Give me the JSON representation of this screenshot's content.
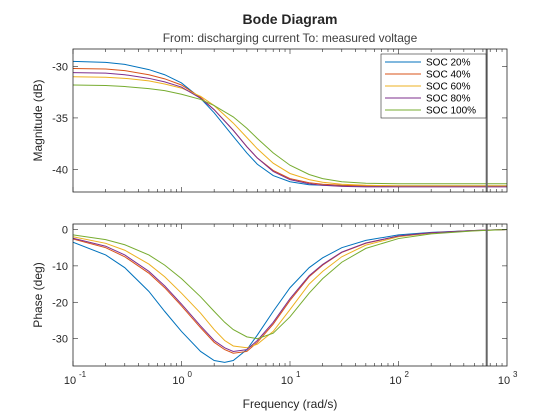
{
  "chart_data": {
    "type": "line",
    "title": "Bode Diagram",
    "subtitle": "From: discharging current  To: measured voltage",
    "xlabel": "Frequency (rad/s)",
    "xscale": "log",
    "xlim": [
      0.1,
      1000
    ],
    "xticks": [
      {
        "value": 0.1,
        "label": "10",
        "exp": "-1"
      },
      {
        "value": 1,
        "label": "10",
        "exp": "0"
      },
      {
        "value": 10,
        "label": "10",
        "exp": "1"
      },
      {
        "value": 100,
        "label": "10",
        "exp": "2"
      },
      {
        "value": 1000,
        "label": "10",
        "exp": "3"
      }
    ],
    "grid": false,
    "legend": {
      "placement": "top-right",
      "entries": [
        "SOC 20%",
        "SOC 40%",
        "SOC 60%",
        "SOC 80%",
        "SOC 100%"
      ]
    },
    "colors": [
      "#0072BD",
      "#D95319",
      "#EDB120",
      "#7E2F8E",
      "#77AC30"
    ],
    "marker_line": {
      "x": 650,
      "color": "#666666"
    },
    "panels": [
      {
        "ylabel": "Magnitude (dB)",
        "ylim": [
          -42.2,
          -28.3
        ],
        "yticks": [
          -30,
          -35,
          -40
        ],
        "series": [
          {
            "name": "SOC 20%",
            "x": [
              0.1,
              0.2,
              0.3,
              0.5,
              0.7,
              1,
              1.5,
              2,
              3,
              4,
              5,
              7,
              10,
              15,
              20,
              30,
              50,
              100,
              300,
              1000
            ],
            "y": [
              -29.5,
              -29.6,
              -29.8,
              -30.3,
              -30.8,
              -31.6,
              -33.1,
              -34.5,
              -36.8,
              -38.4,
              -39.5,
              -40.6,
              -41.2,
              -41.5,
              -41.55,
              -41.6,
              -41.6,
              -41.6,
              -41.6,
              -41.6
            ]
          },
          {
            "name": "SOC 40%",
            "x": [
              0.1,
              0.2,
              0.3,
              0.5,
              0.7,
              1,
              1.5,
              2,
              3,
              4,
              5,
              7,
              10,
              15,
              20,
              30,
              50,
              100,
              300,
              1000
            ],
            "y": [
              -30.2,
              -30.25,
              -30.4,
              -30.8,
              -31.2,
              -31.8,
              -33.0,
              -34.2,
              -36.2,
              -37.8,
              -38.9,
              -40.1,
              -40.9,
              -41.3,
              -41.45,
              -41.55,
              -41.6,
              -41.6,
              -41.6,
              -41.6
            ]
          },
          {
            "name": "SOC 60%",
            "x": [
              0.1,
              0.2,
              0.3,
              0.5,
              0.7,
              1,
              1.5,
              2,
              3,
              4,
              5,
              7,
              10,
              15,
              20,
              30,
              50,
              100,
              300,
              1000
            ],
            "y": [
              -31.0,
              -31.05,
              -31.15,
              -31.4,
              -31.7,
              -32.1,
              -32.9,
              -33.8,
              -35.5,
              -36.9,
              -38.0,
              -39.4,
              -40.4,
              -41.0,
              -41.25,
              -41.45,
              -41.55,
              -41.6,
              -41.6,
              -41.6
            ]
          },
          {
            "name": "SOC 80%",
            "x": [
              0.1,
              0.2,
              0.3,
              0.5,
              0.7,
              1,
              1.5,
              2,
              3,
              4,
              5,
              7,
              10,
              15,
              20,
              30,
              50,
              100,
              300,
              1000
            ],
            "y": [
              -30.6,
              -30.65,
              -30.8,
              -31.15,
              -31.5,
              -32.0,
              -33.1,
              -34.2,
              -36.2,
              -37.8,
              -38.9,
              -40.2,
              -41.0,
              -41.4,
              -41.55,
              -41.65,
              -41.7,
              -41.7,
              -41.7,
              -41.7
            ]
          },
          {
            "name": "SOC 100%",
            "x": [
              0.1,
              0.2,
              0.3,
              0.5,
              0.7,
              1,
              1.5,
              2,
              3,
              4,
              5,
              7,
              10,
              15,
              20,
              30,
              50,
              100,
              300,
              1000
            ],
            "y": [
              -31.8,
              -31.85,
              -31.95,
              -32.15,
              -32.35,
              -32.7,
              -33.2,
              -33.8,
              -34.9,
              -36.0,
              -37.0,
              -38.4,
              -39.6,
              -40.5,
              -40.9,
              -41.2,
              -41.35,
              -41.4,
              -41.4,
              -41.4
            ]
          }
        ]
      },
      {
        "ylabel": "Phase (deg)",
        "ylim": [
          -37.5,
          1.5
        ],
        "yticks": [
          0,
          -10,
          -20,
          -30
        ],
        "series": [
          {
            "name": "SOC 20%",
            "x": [
              0.1,
              0.2,
              0.3,
              0.5,
              0.7,
              1,
              1.5,
              2,
              2.5,
              3,
              4,
              5,
              7,
              10,
              15,
              20,
              30,
              50,
              100,
              200,
              500,
              1000
            ],
            "y": [
              -3.5,
              -7,
              -10.5,
              -17,
              -22.5,
              -28,
              -33.5,
              -36,
              -36.5,
              -36,
              -33,
              -29,
              -22.5,
              -16,
              -10.5,
              -7.8,
              -5,
              -3,
              -1.5,
              -0.8,
              -0.3,
              0
            ]
          },
          {
            "name": "SOC 40%",
            "x": [
              0.1,
              0.2,
              0.3,
              0.5,
              0.7,
              1,
              1.5,
              2,
              2.5,
              3,
              4,
              5,
              7,
              10,
              15,
              20,
              30,
              50,
              100,
              200,
              500,
              1000
            ],
            "y": [
              -2.6,
              -5,
              -7.5,
              -12,
              -16,
              -21,
              -27,
              -31,
              -33,
              -34,
              -33.5,
              -31,
              -26,
              -19.5,
              -13,
              -9.8,
              -6.3,
              -3.8,
              -1.8,
              -0.9,
              -0.3,
              0
            ]
          },
          {
            "name": "SOC 60%",
            "x": [
              0.1,
              0.2,
              0.3,
              0.5,
              0.7,
              1,
              1.5,
              2,
              2.5,
              3,
              4,
              5,
              7,
              10,
              15,
              20,
              30,
              50,
              100,
              200,
              500,
              1000
            ],
            "y": [
              -2,
              -3.8,
              -5.7,
              -9.5,
              -13,
              -17.5,
              -23,
              -27.5,
              -30.5,
              -32,
              -32.5,
              -31.5,
              -28,
              -22,
              -15,
              -11.5,
              -7.5,
              -4.3,
              -2,
              -1,
              -0.35,
              0
            ]
          },
          {
            "name": "SOC 80%",
            "x": [
              0.1,
              0.2,
              0.3,
              0.5,
              0.7,
              1,
              1.5,
              2,
              2.5,
              3,
              4,
              5,
              7,
              10,
              15,
              20,
              30,
              50,
              100,
              200,
              500,
              1000
            ],
            "y": [
              -2.4,
              -4.6,
              -7,
              -11.5,
              -15.5,
              -20.5,
              -26.5,
              -30.5,
              -32.5,
              -33.5,
              -33,
              -30.5,
              -25.5,
              -19,
              -12.7,
              -9.6,
              -6.2,
              -3.7,
              -1.8,
              -0.9,
              -0.3,
              0
            ]
          },
          {
            "name": "SOC 100%",
            "x": [
              0.1,
              0.2,
              0.3,
              0.5,
              0.7,
              1,
              1.5,
              2,
              2.5,
              3,
              4,
              5,
              7,
              10,
              15,
              20,
              30,
              50,
              100,
              200,
              500,
              1000
            ],
            "y": [
              -1.5,
              -2.8,
              -4.2,
              -7,
              -9.8,
              -13.5,
              -18.5,
              -22.5,
              -25.5,
              -27.5,
              -29.5,
              -30,
              -28.5,
              -24,
              -17.5,
              -13.5,
              -9,
              -5.2,
              -2.5,
              -1.2,
              -0.4,
              0
            ]
          }
        ]
      }
    ]
  }
}
